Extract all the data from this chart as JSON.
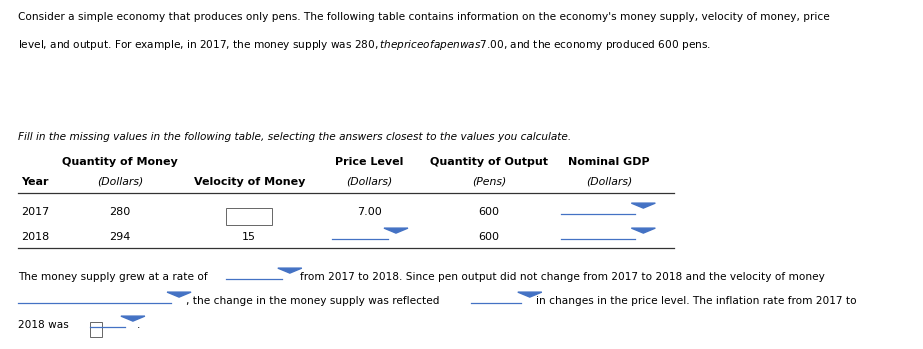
{
  "bg_color": "#ffffff",
  "text_color": "#000000",
  "intro_line1": "Consider a simple economy that produces only pens. The following table contains information on the economy's money supply, velocity of money, price",
  "intro_line2": "level, and output. For example, in 2017, the money supply was $280, the price of a pen was $7.00, and the economy produced 600 pens.",
  "fill_text": "Fill in the missing values in the following table, selecting the answers closest to the values you calculate.",
  "year_label": "Year",
  "col1_bold": "Quantity of Money",
  "col2_bold": "Velocity of Money",
  "col3_bold": "Price Level",
  "col4_bold": "Quantity of Output",
  "col5_bold": "Nominal GDP",
  "col1_sub": "(Dollars)",
  "col3_sub": "(Dollars)",
  "col4_sub": "(Pens)",
  "col5_sub": "(Dollars)",
  "years": [
    "2017",
    "2018"
  ],
  "qty_money": [
    "280",
    "294"
  ],
  "velocity_2018": "15",
  "price_2017": "7.00",
  "qty_output": [
    "600",
    "600"
  ],
  "btm1a": "The money supply grew at a rate of",
  "btm1b": "from 2017 to 2018. Since pen output did not change from 2017 to 2018 and the velocity of money",
  "btm2a": ", the change in the money supply was reflected",
  "btm2b": "in changes in the price level. The inflation rate from 2017 to",
  "btm3": "2018 was",
  "dropdown_color": "#4472c4",
  "line_color": "#4472c4",
  "table_line_color": "#333333"
}
